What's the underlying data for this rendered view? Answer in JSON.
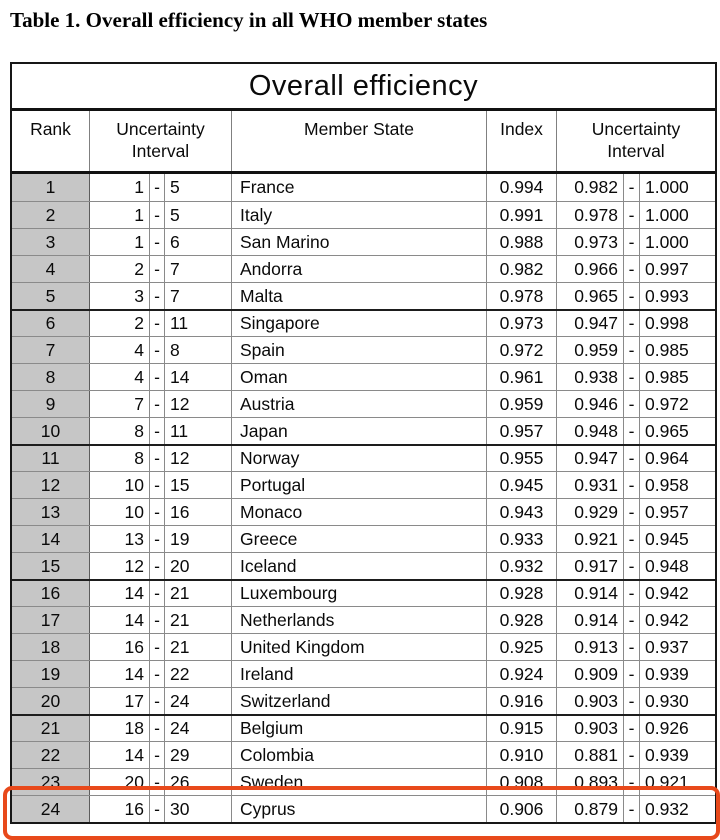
{
  "page": {
    "title": "Table 1. Overall efficiency in all WHO member states"
  },
  "table": {
    "title": "Overall efficiency",
    "dash": "-",
    "columns": [
      {
        "label": "Rank"
      },
      {
        "label": "Uncertainty Interval"
      },
      {
        "label": "Member State"
      },
      {
        "label": "Index"
      },
      {
        "label": "Uncertainty Interval"
      }
    ],
    "rows": [
      {
        "rank": "1",
        "ui_low": "1",
        "ui_high": "5",
        "member_state": "France",
        "index": "0.994",
        "ui2_low": "0.982",
        "ui2_high": "1.000"
      },
      {
        "rank": "2",
        "ui_low": "1",
        "ui_high": "5",
        "member_state": "Italy",
        "index": "0.991",
        "ui2_low": "0.978",
        "ui2_high": "1.000"
      },
      {
        "rank": "3",
        "ui_low": "1",
        "ui_high": "6",
        "member_state": "San Marino",
        "index": "0.988",
        "ui2_low": "0.973",
        "ui2_high": "1.000"
      },
      {
        "rank": "4",
        "ui_low": "2",
        "ui_high": "7",
        "member_state": "Andorra",
        "index": "0.982",
        "ui2_low": "0.966",
        "ui2_high": "0.997"
      },
      {
        "rank": "5",
        "ui_low": "3",
        "ui_high": "7",
        "member_state": "Malta",
        "index": "0.978",
        "ui2_low": "0.965",
        "ui2_high": "0.993"
      },
      {
        "rank": "6",
        "ui_low": "2",
        "ui_high": "11",
        "member_state": "Singapore",
        "index": "0.973",
        "ui2_low": "0.947",
        "ui2_high": "0.998"
      },
      {
        "rank": "7",
        "ui_low": "4",
        "ui_high": "8",
        "member_state": "Spain",
        "index": "0.972",
        "ui2_low": "0.959",
        "ui2_high": "0.985"
      },
      {
        "rank": "8",
        "ui_low": "4",
        "ui_high": "14",
        "member_state": "Oman",
        "index": "0.961",
        "ui2_low": "0.938",
        "ui2_high": "0.985"
      },
      {
        "rank": "9",
        "ui_low": "7",
        "ui_high": "12",
        "member_state": "Austria",
        "index": "0.959",
        "ui2_low": "0.946",
        "ui2_high": "0.972"
      },
      {
        "rank": "10",
        "ui_low": "8",
        "ui_high": "11",
        "member_state": "Japan",
        "index": "0.957",
        "ui2_low": "0.948",
        "ui2_high": "0.965"
      },
      {
        "rank": "11",
        "ui_low": "8",
        "ui_high": "12",
        "member_state": "Norway",
        "index": "0.955",
        "ui2_low": "0.947",
        "ui2_high": "0.964"
      },
      {
        "rank": "12",
        "ui_low": "10",
        "ui_high": "15",
        "member_state": "Portugal",
        "index": "0.945",
        "ui2_low": "0.931",
        "ui2_high": "0.958"
      },
      {
        "rank": "13",
        "ui_low": "10",
        "ui_high": "16",
        "member_state": "Monaco",
        "index": "0.943",
        "ui2_low": "0.929",
        "ui2_high": "0.957"
      },
      {
        "rank": "14",
        "ui_low": "13",
        "ui_high": "19",
        "member_state": "Greece",
        "index": "0.933",
        "ui2_low": "0.921",
        "ui2_high": "0.945"
      },
      {
        "rank": "15",
        "ui_low": "12",
        "ui_high": "20",
        "member_state": "Iceland",
        "index": "0.932",
        "ui2_low": "0.917",
        "ui2_high": "0.948"
      },
      {
        "rank": "16",
        "ui_low": "14",
        "ui_high": "21",
        "member_state": "Luxembourg",
        "index": "0.928",
        "ui2_low": "0.914",
        "ui2_high": "0.942"
      },
      {
        "rank": "17",
        "ui_low": "14",
        "ui_high": "21",
        "member_state": "Netherlands",
        "index": "0.928",
        "ui2_low": "0.914",
        "ui2_high": "0.942"
      },
      {
        "rank": "18",
        "ui_low": "16",
        "ui_high": "21",
        "member_state": "United Kingdom",
        "index": "0.925",
        "ui2_low": "0.913",
        "ui2_high": "0.937"
      },
      {
        "rank": "19",
        "ui_low": "14",
        "ui_high": "22",
        "member_state": "Ireland",
        "index": "0.924",
        "ui2_low": "0.909",
        "ui2_high": "0.939"
      },
      {
        "rank": "20",
        "ui_low": "17",
        "ui_high": "24",
        "member_state": "Switzerland",
        "index": "0.916",
        "ui2_low": "0.903",
        "ui2_high": "0.930"
      },
      {
        "rank": "21",
        "ui_low": "18",
        "ui_high": "24",
        "member_state": "Belgium",
        "index": "0.915",
        "ui2_low": "0.903",
        "ui2_high": "0.926"
      },
      {
        "rank": "22",
        "ui_low": "14",
        "ui_high": "29",
        "member_state": "Colombia",
        "index": "0.910",
        "ui2_low": "0.881",
        "ui2_high": "0.939"
      },
      {
        "rank": "23",
        "ui_low": "20",
        "ui_high": "26",
        "member_state": "Sweden",
        "index": "0.908",
        "ui2_low": "0.893",
        "ui2_high": "0.921"
      },
      {
        "rank": "24",
        "ui_low": "16",
        "ui_high": "30",
        "member_state": "Cyprus",
        "index": "0.906",
        "ui2_low": "0.879",
        "ui2_high": "0.932"
      }
    ],
    "highlight": {
      "highlighted_rank": "24",
      "highlighted_member_state": "Cyprus",
      "color": "#e8491b"
    }
  }
}
